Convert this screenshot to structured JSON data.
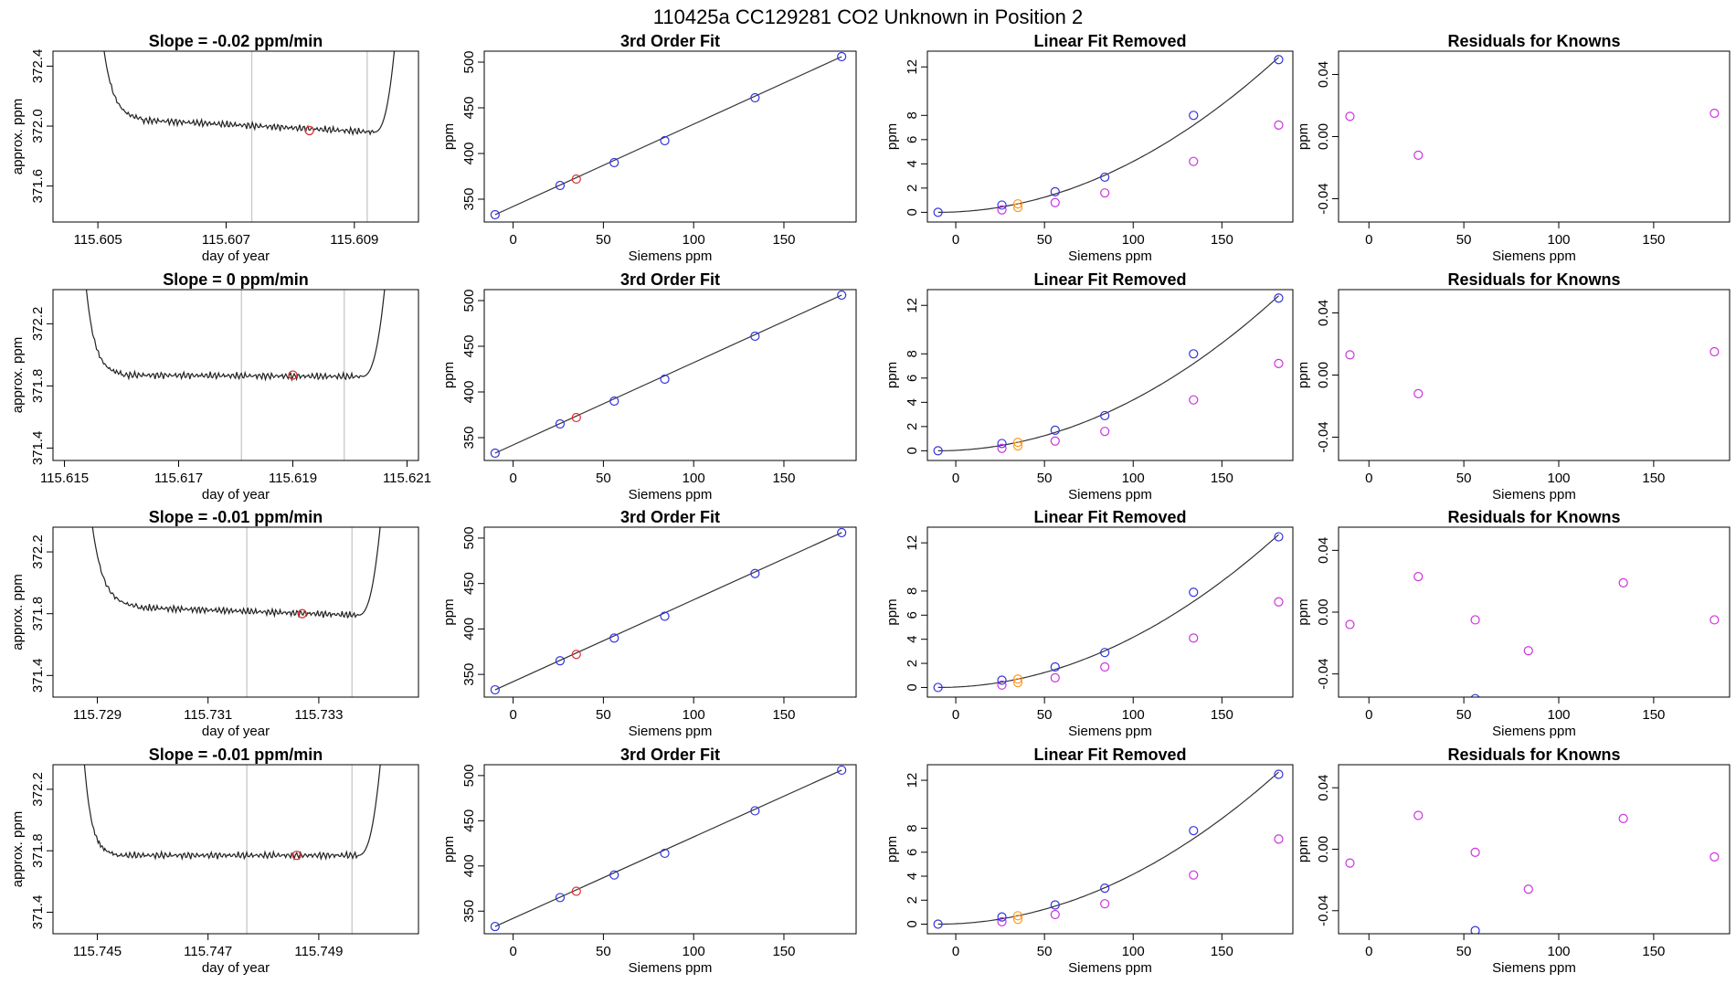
{
  "figure_title": "110425a      CC129281    CO2 Unknown in Position  2",
  "colors": {
    "trace": "#222222",
    "known_points": "#3333dd",
    "unknown_point": "#dd3333",
    "unknown_points_orange": "#ff9922",
    "residual_points": "#cc33dd",
    "window_lines": "#c8c8c8",
    "fit_line": "#333333"
  },
  "chart_data": [
    {
      "type": "line",
      "row": 1,
      "col": 1,
      "title": "Slope =  -0.02  ppm/min",
      "xlabel": "day of year",
      "ylabel": "approx. ppm",
      "xlim": [
        115.6043,
        115.61
      ],
      "ylim": [
        371.36,
        372.5
      ],
      "xticks": [
        "115.605",
        "115.607",
        "115.609"
      ],
      "yticks": [
        "371.6",
        "372.0",
        "372.4"
      ],
      "trace": {
        "x0": 115.6049,
        "x1": 115.6098,
        "left_end": 115.605,
        "right_end": 115.6097,
        "drop_end": 115.6057,
        "rise_start": 115.6093,
        "plateau_start": 372.04,
        "plateau_end": 371.96
      },
      "window": [
        115.6074,
        115.6092
      ],
      "marker": {
        "x": 115.6083,
        "y": 371.97
      }
    },
    {
      "type": "scatter",
      "row": 1,
      "col": 2,
      "title": "3rd Order Fit",
      "xlabel": "Siemens ppm",
      "ylabel": "ppm",
      "xlim": [
        -16,
        190
      ],
      "ylim": [
        325,
        512
      ],
      "xticks": [
        "0",
        "50",
        "100",
        "150"
      ],
      "yticks": [
        "350",
        "400",
        "450",
        "500"
      ],
      "knowns": {
        "x": [
          -10,
          26,
          56,
          84,
          134,
          182
        ],
        "y": [
          333,
          365,
          390,
          414,
          461,
          506
        ]
      },
      "unknowns": {
        "x": [
          35
        ],
        "y": [
          372
        ]
      },
      "fit": [
        {
          "x": -10,
          "y": 333
        },
        {
          "x": 182,
          "y": 506
        }
      ]
    },
    {
      "type": "scatter",
      "row": 1,
      "col": 3,
      "title": "Linear Fit Removed",
      "xlabel": "Siemens ppm",
      "ylabel": "ppm",
      "xlim": [
        -16,
        190
      ],
      "ylim": [
        -0.8,
        13.3
      ],
      "xticks": [
        "0",
        "50",
        "100",
        "150"
      ],
      "yticks": [
        "0",
        "2",
        "4",
        "6",
        "8",
        "12"
      ],
      "knowns": {
        "x": [
          -10,
          26,
          56,
          84,
          134,
          182
        ],
        "y": [
          0,
          0.6,
          1.7,
          2.9,
          8.0,
          12.6
        ]
      },
      "unknowns_orange": {
        "x": [
          35,
          35
        ],
        "y": [
          0.4,
          0.7
        ]
      },
      "residual_points": {
        "x": [
          26,
          56,
          84,
          134,
          182
        ],
        "y": [
          0.2,
          0.8,
          1.6,
          4.2,
          7.2
        ]
      },
      "fit_curve_a": 0.000347
    },
    {
      "type": "scatter",
      "row": 1,
      "col": 4,
      "title": "Residuals for Knowns",
      "xlabel": "Siemens ppm",
      "ylabel": "ppm",
      "xlim": [
        -16,
        190
      ],
      "ylim": [
        -0.055,
        0.055
      ],
      "xticks": [
        "0",
        "50",
        "100",
        "150"
      ],
      "yticks": [
        "-0.04",
        "0.00",
        "0.04"
      ],
      "points": {
        "x": [
          -10,
          26,
          182
        ],
        "y": [
          0.013,
          -0.012,
          0.015
        ]
      }
    },
    {
      "type": "line",
      "row": 2,
      "col": 1,
      "title": "Slope =  0  ppm/min",
      "xlabel": "day of year",
      "ylabel": "approx. ppm",
      "xlim": [
        115.6148,
        115.6212
      ],
      "ylim": [
        371.32,
        372.42
      ],
      "xticks": [
        "115.615",
        "115.617",
        "115.619",
        "115.621"
      ],
      "yticks": [
        "371.4",
        "371.8",
        "372.2"
      ],
      "trace": {
        "x0": 115.6152,
        "x1": 115.6208,
        "left_end": 115.6153,
        "right_end": 115.6207,
        "drop_end": 115.616,
        "rise_start": 115.6202,
        "plateau_start": 371.87,
        "plateau_end": 371.86
      },
      "window": [
        115.6181,
        115.6199
      ],
      "marker": {
        "x": 115.619,
        "y": 371.87
      }
    },
    {
      "type": "scatter",
      "row": 2,
      "col": 2,
      "title": "3rd Order Fit",
      "xlabel": "Siemens ppm",
      "ylabel": "ppm",
      "xlim": [
        -16,
        190
      ],
      "ylim": [
        325,
        512
      ],
      "xticks": [
        "0",
        "50",
        "100",
        "150"
      ],
      "yticks": [
        "350",
        "400",
        "450",
        "500"
      ],
      "knowns": {
        "x": [
          -10,
          26,
          56,
          84,
          134,
          182
        ],
        "y": [
          333,
          365,
          390,
          414,
          461,
          506
        ]
      },
      "unknowns": {
        "x": [
          35
        ],
        "y": [
          372
        ]
      },
      "fit": [
        {
          "x": -10,
          "y": 333
        },
        {
          "x": 182,
          "y": 506
        }
      ]
    },
    {
      "type": "scatter",
      "row": 2,
      "col": 3,
      "title": "Linear Fit Removed",
      "xlabel": "Siemens ppm",
      "ylabel": "ppm",
      "xlim": [
        -16,
        190
      ],
      "ylim": [
        -0.8,
        13.3
      ],
      "xticks": [
        "0",
        "50",
        "100",
        "150"
      ],
      "yticks": [
        "0",
        "2",
        "4",
        "6",
        "8",
        "12"
      ],
      "knowns": {
        "x": [
          -10,
          26,
          56,
          84,
          134,
          182
        ],
        "y": [
          0,
          0.6,
          1.7,
          2.9,
          8.0,
          12.6
        ]
      },
      "unknowns_orange": {
        "x": [
          35,
          35
        ],
        "y": [
          0.4,
          0.7
        ]
      },
      "residual_points": {
        "x": [
          26,
          56,
          84,
          134,
          182
        ],
        "y": [
          0.2,
          0.8,
          1.6,
          4.2,
          7.2
        ]
      },
      "fit_curve_a": 0.000347
    },
    {
      "type": "scatter",
      "row": 2,
      "col": 4,
      "title": "Residuals for Knowns",
      "xlabel": "Siemens ppm",
      "ylabel": "ppm",
      "xlim": [
        -16,
        190
      ],
      "ylim": [
        -0.055,
        0.055
      ],
      "xticks": [
        "0",
        "50",
        "100",
        "150"
      ],
      "yticks": [
        "-0.04",
        "0.00",
        "0.04"
      ],
      "points": {
        "x": [
          -10,
          26,
          182
        ],
        "y": [
          0.013,
          -0.012,
          0.015
        ]
      }
    },
    {
      "type": "line",
      "row": 3,
      "col": 1,
      "title": "Slope =  -0.01  ppm/min",
      "xlabel": "day of year",
      "ylabel": "approx. ppm",
      "xlim": [
        115.7282,
        115.7348
      ],
      "ylim": [
        371.26,
        372.36
      ],
      "xticks": [
        "115.729",
        "115.731",
        "115.733"
      ],
      "yticks": [
        "371.4",
        "371.8",
        "372.2"
      ],
      "trace": {
        "x0": 115.7286,
        "x1": 115.7343,
        "left_end": 115.7288,
        "right_end": 115.7342,
        "drop_end": 115.7297,
        "rise_start": 115.7337,
        "plateau_start": 371.84,
        "plateau_end": 371.79
      },
      "window": [
        115.7317,
        115.7336
      ],
      "marker": {
        "x": 115.7327,
        "y": 371.8
      }
    },
    {
      "type": "scatter",
      "row": 3,
      "col": 2,
      "title": "3rd Order Fit",
      "xlabel": "Siemens ppm",
      "ylabel": "ppm",
      "xlim": [
        -16,
        190
      ],
      "ylim": [
        325,
        512
      ],
      "xticks": [
        "0",
        "50",
        "100",
        "150"
      ],
      "yticks": [
        "350",
        "400",
        "450",
        "500"
      ],
      "knowns": {
        "x": [
          -10,
          26,
          56,
          84,
          134,
          182
        ],
        "y": [
          333,
          365,
          390,
          414,
          461,
          506
        ]
      },
      "unknowns": {
        "x": [
          35
        ],
        "y": [
          372
        ]
      },
      "fit": [
        {
          "x": -10,
          "y": 333
        },
        {
          "x": 182,
          "y": 506
        }
      ]
    },
    {
      "type": "scatter",
      "row": 3,
      "col": 3,
      "title": "Linear Fit Removed",
      "xlabel": "Siemens ppm",
      "ylabel": "ppm",
      "xlim": [
        -16,
        190
      ],
      "ylim": [
        -0.8,
        13.3
      ],
      "xticks": [
        "0",
        "50",
        "100",
        "150"
      ],
      "yticks": [
        "0",
        "2",
        "4",
        "6",
        "8",
        "12"
      ],
      "knowns": {
        "x": [
          -10,
          26,
          56,
          84,
          134,
          182
        ],
        "y": [
          0,
          0.6,
          1.7,
          2.9,
          7.9,
          12.5
        ]
      },
      "unknowns_orange": {
        "x": [
          35,
          35
        ],
        "y": [
          0.4,
          0.7
        ]
      },
      "residual_points": {
        "x": [
          26,
          56,
          84,
          134,
          182
        ],
        "y": [
          0.2,
          0.8,
          1.7,
          4.1,
          7.1
        ]
      },
      "fit_curve_a": 0.000344
    },
    {
      "type": "scatter",
      "row": 3,
      "col": 4,
      "title": "Residuals for Knowns",
      "xlabel": "Siemens ppm",
      "ylabel": "ppm",
      "xlim": [
        -16,
        190
      ],
      "ylim": [
        -0.055,
        0.055
      ],
      "xticks": [
        "0",
        "50",
        "100",
        "150"
      ],
      "yticks": [
        "-0.04",
        "0.00",
        "0.04"
      ],
      "points": {
        "x": [
          -10,
          26,
          56,
          84,
          134,
          182
        ],
        "y": [
          -0.008,
          0.023,
          -0.005,
          -0.025,
          0.019,
          -0.005
        ]
      },
      "blue_points": {
        "x": [
          56
        ],
        "y": [
          -0.056
        ]
      }
    },
    {
      "type": "line",
      "row": 4,
      "col": 1,
      "title": "Slope =  -0.01  ppm/min",
      "xlabel": "day of year",
      "ylabel": "approx. ppm",
      "xlim": [
        115.7442,
        115.7508
      ],
      "ylim": [
        371.26,
        372.36
      ],
      "xticks": [
        "115.745",
        "115.747",
        "115.749"
      ],
      "yticks": [
        "371.4",
        "371.8",
        "372.2"
      ],
      "trace": {
        "x0": 115.7446,
        "x1": 115.7503,
        "left_end": 115.7447,
        "right_end": 115.7502,
        "drop_end": 115.7453,
        "rise_start": 115.7497,
        "plateau_start": 371.77,
        "plateau_end": 371.77
      },
      "window": [
        115.7477,
        115.7496
      ],
      "marker": {
        "x": 115.7486,
        "y": 371.77
      }
    },
    {
      "type": "scatter",
      "row": 4,
      "col": 2,
      "title": "3rd Order Fit",
      "xlabel": "Siemens ppm",
      "ylabel": "ppm",
      "xlim": [
        -16,
        190
      ],
      "ylim": [
        325,
        512
      ],
      "xticks": [
        "0",
        "50",
        "100",
        "150"
      ],
      "yticks": [
        "350",
        "400",
        "450",
        "500"
      ],
      "knowns": {
        "x": [
          -10,
          26,
          56,
          84,
          134,
          182
        ],
        "y": [
          333,
          365,
          390,
          414,
          461,
          506
        ]
      },
      "unknowns": {
        "x": [
          35
        ],
        "y": [
          372
        ]
      },
      "fit": [
        {
          "x": -10,
          "y": 333
        },
        {
          "x": 182,
          "y": 506
        }
      ]
    },
    {
      "type": "scatter",
      "row": 4,
      "col": 3,
      "title": "Linear Fit Removed",
      "xlabel": "Siemens ppm",
      "ylabel": "ppm",
      "xlim": [
        -16,
        190
      ],
      "ylim": [
        -0.8,
        13.3
      ],
      "xticks": [
        "0",
        "50",
        "100",
        "150"
      ],
      "yticks": [
        "0",
        "2",
        "4",
        "6",
        "8",
        "12"
      ],
      "knowns": {
        "x": [
          -10,
          26,
          56,
          84,
          134,
          182
        ],
        "y": [
          0,
          0.6,
          1.6,
          3.0,
          7.8,
          12.5
        ]
      },
      "unknowns_orange": {
        "x": [
          35,
          35
        ],
        "y": [
          0.4,
          0.7
        ]
      },
      "residual_points": {
        "x": [
          26,
          56,
          84,
          134,
          182
        ],
        "y": [
          0.2,
          0.8,
          1.7,
          4.1,
          7.1
        ]
      },
      "fit_curve_a": 0.000344
    },
    {
      "type": "scatter",
      "row": 4,
      "col": 4,
      "title": "Residuals for Knowns",
      "xlabel": "Siemens ppm",
      "ylabel": "ppm",
      "xlim": [
        -16,
        190
      ],
      "ylim": [
        -0.055,
        0.055
      ],
      "xticks": [
        "0",
        "50",
        "100",
        "150"
      ],
      "yticks": [
        "-0.04",
        "0.00",
        "0.04"
      ],
      "points": {
        "x": [
          -10,
          26,
          56,
          84,
          134,
          182
        ],
        "y": [
          -0.009,
          0.022,
          -0.002,
          -0.026,
          0.02,
          -0.005
        ]
      },
      "blue_points": {
        "x": [
          56
        ],
        "y": [
          -0.053
        ]
      }
    }
  ]
}
